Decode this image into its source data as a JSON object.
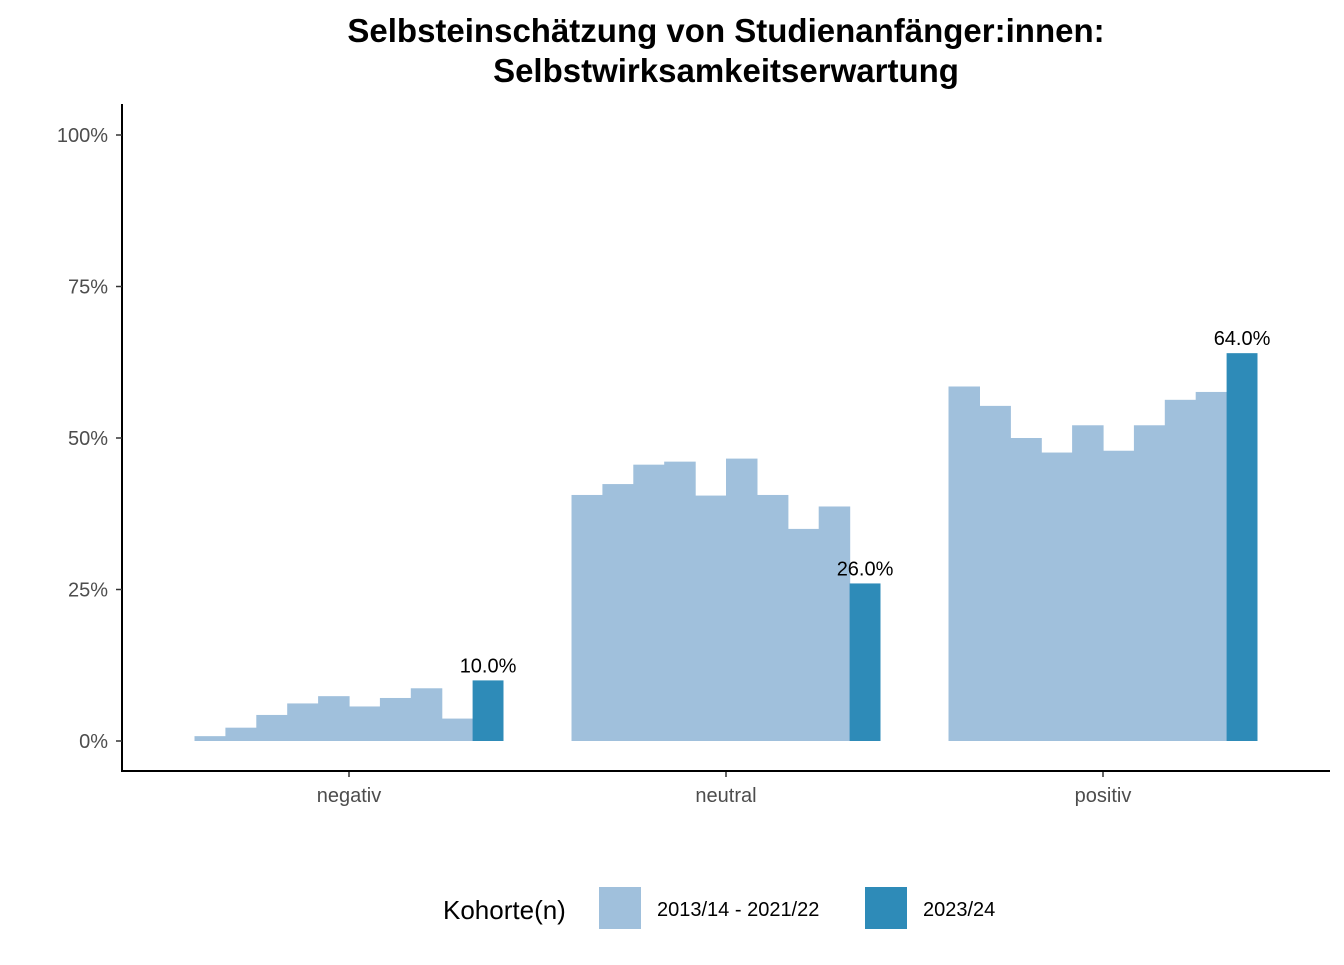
{
  "chart_data": {
    "type": "bar",
    "title": "Selbsteinschätzung von Studienanfänger:innen:",
    "subtitle": "Selbstwirksamkeitserwartung",
    "xlabel": "",
    "ylabel": "",
    "ylim": [
      0,
      1.05
    ],
    "yticks": [
      0,
      0.25,
      0.5,
      0.75,
      1.0
    ],
    "ytick_labels": [
      "0%",
      "25%",
      "50%",
      "75%",
      "100%"
    ],
    "categories": [
      "negativ",
      "neutral",
      "positiv"
    ],
    "series": [
      {
        "name": "2013/14 - 2021/22",
        "color": "#a0c0dc",
        "values_per_category": [
          [
            0.008,
            0.022,
            0.043,
            0.062,
            0.074,
            0.057,
            0.071,
            0.087,
            0.037
          ],
          [
            0.406,
            0.424,
            0.456,
            0.461,
            0.405,
            0.466,
            0.406,
            0.35,
            0.387
          ],
          [
            0.585,
            0.553,
            0.5,
            0.476,
            0.521,
            0.479,
            0.521,
            0.563,
            0.576
          ]
        ]
      },
      {
        "name": "2023/24",
        "color": "#2e8bb8",
        "values": [
          0.1,
          0.26,
          0.64
        ],
        "labels": [
          "10.0%",
          "26.0%",
          "64.0%"
        ]
      }
    ],
    "legend": {
      "title": "Kohorte(n)",
      "position": "bottom",
      "entries": [
        "2013/14 - 2021/22",
        "2023/24"
      ]
    },
    "grid": false
  }
}
